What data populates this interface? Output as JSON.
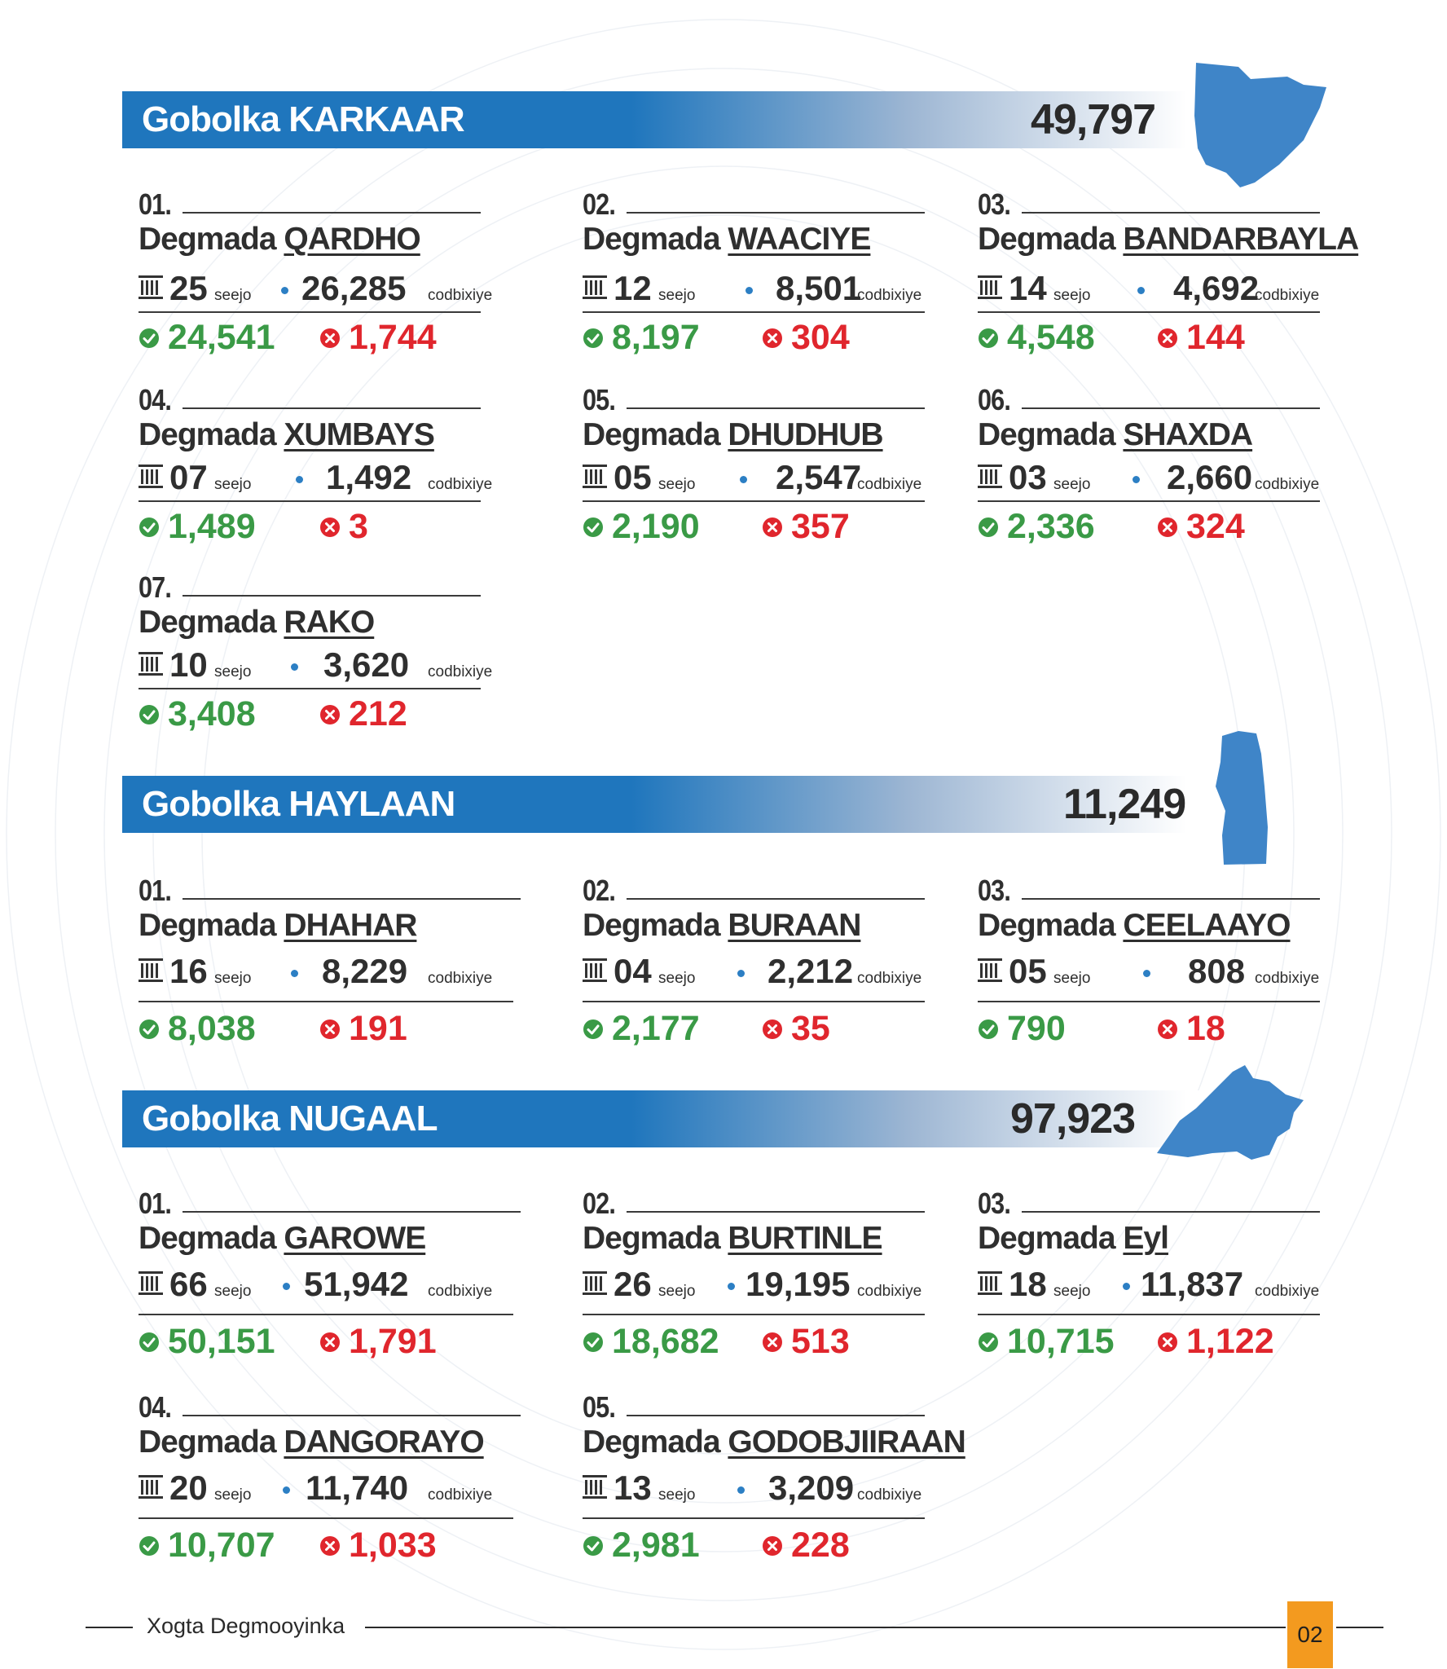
{
  "regions": [
    {
      "title": "Gobolka KARKAAR",
      "total": "49,797",
      "map_icon": "karkaar-region-map",
      "districts": [
        {
          "num": "01.",
          "prefix": "Degmada",
          "name": "QARDHO",
          "seats": "25",
          "seat_label": "seejo",
          "registered": "26,285",
          "reg_label": "codbixiye",
          "valid": "24,541",
          "invalid": "1,744"
        },
        {
          "num": "02.",
          "prefix": "Degmada",
          "name": "WAACIYE",
          "seats": "12",
          "seat_label": "seejo",
          "registered": "8,501",
          "reg_label": "codbixiye",
          "valid": "8,197",
          "invalid": "304"
        },
        {
          "num": "03.",
          "prefix": "Degmada",
          "name": "BANDARBAYLA",
          "seats": "14",
          "seat_label": "seejo",
          "registered": "4,692",
          "reg_label": "codbixiye",
          "valid": "4,548",
          "invalid": "144"
        },
        {
          "num": "04.",
          "prefix": "Degmada",
          "name": "XUMBAYS",
          "seats": "07",
          "seat_label": "seejo",
          "registered": "1,492",
          "reg_label": "codbixiye",
          "valid": "1,489",
          "invalid": "3"
        },
        {
          "num": "05.",
          "prefix": "Degmada",
          "name": "DHUDHUB",
          "seats": "05",
          "seat_label": "seejo",
          "registered": "2,547",
          "reg_label": "codbixiye",
          "valid": "2,190",
          "invalid": "357"
        },
        {
          "num": "06.",
          "prefix": "Degmada",
          "name": "SHAXDA",
          "seats": "03",
          "seat_label": "seejo",
          "registered": "2,660",
          "reg_label": "codbixiye",
          "valid": "2,336",
          "invalid": "324"
        },
        {
          "num": "07.",
          "prefix": "Degmada",
          "name": "RAKO",
          "seats": "10",
          "seat_label": "seejo",
          "registered": "3,620",
          "reg_label": "codbixiye",
          "valid": "3,408",
          "invalid": "212"
        }
      ]
    },
    {
      "title": "Gobolka HAYLAAN",
      "total": "11,249",
      "map_icon": "haylaan-region-map",
      "districts": [
        {
          "num": "01.",
          "prefix": "Degmada",
          "name": "DHAHAR",
          "seats": "16",
          "seat_label": "seejo",
          "registered": "8,229",
          "reg_label": "codbixiye",
          "valid": "8,038",
          "invalid": "191"
        },
        {
          "num": "02.",
          "prefix": "Degmada",
          "name": "BURAAN",
          "seats": "04",
          "seat_label": "seejo",
          "registered": "2,212",
          "reg_label": "codbixiye",
          "valid": "2,177",
          "invalid": "35"
        },
        {
          "num": "03.",
          "prefix": "Degmada",
          "name": "CEELAAYO",
          "seats": "05",
          "seat_label": "seejo",
          "registered": "808",
          "reg_label": "codbixiye",
          "valid": "790",
          "invalid": "18"
        }
      ]
    },
    {
      "title": "Gobolka NUGAAL",
      "total": "97,923",
      "map_icon": "nugaal-region-map",
      "districts": [
        {
          "num": "01.",
          "prefix": "Degmada",
          "name": "GAROWE",
          "seats": "66",
          "seat_label": "seejo",
          "registered": "51,942",
          "reg_label": "codbixiye",
          "valid": "50,151",
          "invalid": "1,791"
        },
        {
          "num": "02.",
          "prefix": "Degmada",
          "name": "BURTINLE",
          "seats": "26",
          "seat_label": "seejo",
          "registered": "19,195",
          "reg_label": "codbixiye",
          "valid": "18,682",
          "invalid": "513"
        },
        {
          "num": "03.",
          "prefix": "Degmada",
          "name": "Eyl",
          "seats": "18",
          "seat_label": "seejo",
          "registered": "11,837",
          "reg_label": "codbixiye",
          "valid": "10,715",
          "invalid": "1,122"
        },
        {
          "num": "04.",
          "prefix": "Degmada",
          "name": "DANGORAYO",
          "seats": "20",
          "seat_label": "seejo",
          "registered": "11,740",
          "reg_label": "codbixiye",
          "valid": "10,707",
          "invalid": "1,033"
        },
        {
          "num": "05.",
          "prefix": "Degmada",
          "name": "GODOBJIIRAAN",
          "seats": "13",
          "seat_label": "seejo",
          "registered": "3,209",
          "reg_label": "codbixiye",
          "valid": "2,981",
          "invalid": "228"
        }
      ]
    }
  ],
  "icons": {
    "seats": "bank-building-icon",
    "valid": "check-circle-icon",
    "invalid": "x-circle-icon"
  },
  "colors": {
    "brand_blue": "#1f76bd",
    "valid_green": "#3a9a46",
    "invalid_red": "#e0262d",
    "page_badge": "#f39a1f"
  },
  "footer": {
    "title": "Xogta Degmooyinka",
    "page": "02"
  }
}
